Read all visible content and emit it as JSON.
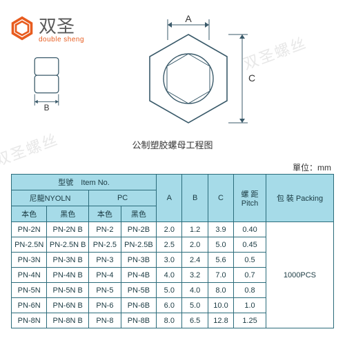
{
  "logo": {
    "cn": "双圣",
    "en": "double sheng"
  },
  "watermarks": [
    "双圣螺丝",
    "双圣螺丝",
    "双圣螺丝"
  ],
  "diagram": {
    "caption": "公制塑胶螺母工程图",
    "labels": {
      "A": "A",
      "B": "B",
      "C": "C"
    },
    "stroke": "#3a5a6a",
    "fill": "#ffffff"
  },
  "unit_label": "單位：mm",
  "table": {
    "header": {
      "item_no": "型號　Item No.",
      "nylon": "尼龍NYOLN",
      "pc": "PC",
      "natural": "本色",
      "black": "黑色",
      "A": "A",
      "B": "B",
      "C": "C",
      "pitch": "螺 距 Pitch",
      "packing": "包 裝 Packing"
    },
    "packing_value": "1000PCS",
    "colors": {
      "header_bg": "#a6dbe8",
      "border": "#2a6b7a",
      "text": "#1a3a42"
    },
    "col_widths_pct": [
      11,
      13,
      10,
      11,
      8,
      8,
      8,
      10,
      21
    ],
    "rows": [
      {
        "n1": "PN-2N",
        "n2": "PN-2N B",
        "p1": "PN-2",
        "p2": "PN-2B",
        "a": "2.0",
        "b": "1.2",
        "c": "3.9",
        "pitch": "0.40"
      },
      {
        "n1": "PN-2.5N",
        "n2": "PN-2.5N B",
        "p1": "PN-2.5",
        "p2": "PN-2.5B",
        "a": "2.5",
        "b": "2.0",
        "c": "5.0",
        "pitch": "0.45"
      },
      {
        "n1": "PN-3N",
        "n2": "PN-3N B",
        "p1": "PN-3",
        "p2": "PN-3B",
        "a": "3.0",
        "b": "2.4",
        "c": "5.6",
        "pitch": "0.5"
      },
      {
        "n1": "PN-4N",
        "n2": "PN-4N B",
        "p1": "PN-4",
        "p2": "PN-4B",
        "a": "4.0",
        "b": "3.2",
        "c": "7.0",
        "pitch": "0.7"
      },
      {
        "n1": "PN-5N",
        "n2": "PN-5N B",
        "p1": "PN-5",
        "p2": "PN-5B",
        "a": "5.0",
        "b": "4.0",
        "c": "8.0",
        "pitch": "0.8"
      },
      {
        "n1": "PN-6N",
        "n2": "PN-6N B",
        "p1": "PN-6",
        "p2": "PN-6B",
        "a": "6.0",
        "b": "5.0",
        "c": "10.0",
        "pitch": "1.0"
      },
      {
        "n1": "PN-8N",
        "n2": "PN-8N B",
        "p1": "PN-8",
        "p2": "PN-8B",
        "a": "8.0",
        "b": "6.5",
        "c": "12.8",
        "pitch": "1.25"
      }
    ]
  }
}
